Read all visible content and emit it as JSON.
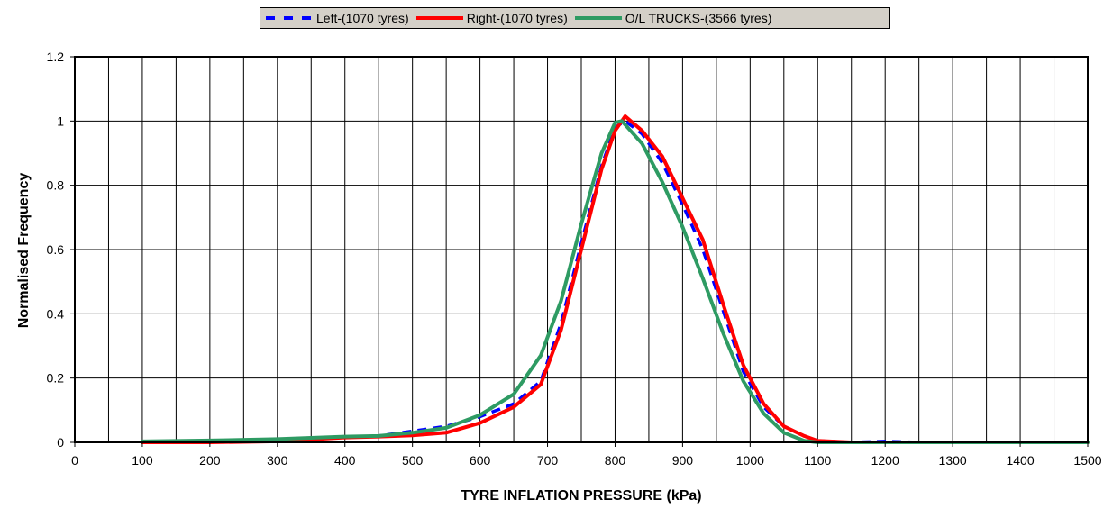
{
  "chart_data": {
    "type": "line",
    "title": "",
    "xlabel": "TYRE INFLATION PRESSURE (kPa)",
    "ylabel": "Normalised Frequency",
    "xlim": [
      0,
      1500
    ],
    "ylim": [
      0,
      1.2
    ],
    "x_ticks": [
      "0",
      "100",
      "200",
      "300",
      "400",
      "500",
      "600",
      "700",
      "800",
      "900",
      "1000",
      "1100",
      "1200",
      "1300",
      "1400",
      "1500"
    ],
    "y_ticks": [
      "0",
      "0.2",
      "0.4",
      "0.6",
      "0.8",
      "1",
      "1.2"
    ],
    "grid": true,
    "legend_position": "top-center",
    "series": [
      {
        "name": "Left-(1070 tyres)",
        "color": "#0000ff",
        "style": "dashed",
        "points": [
          [
            100,
            0
          ],
          [
            200,
            0.002
          ],
          [
            300,
            0.005
          ],
          [
            400,
            0.015
          ],
          [
            450,
            0.02
          ],
          [
            500,
            0.035
          ],
          [
            550,
            0.05
          ],
          [
            600,
            0.08
          ],
          [
            650,
            0.12
          ],
          [
            690,
            0.19
          ],
          [
            720,
            0.37
          ],
          [
            750,
            0.62
          ],
          [
            780,
            0.86
          ],
          [
            800,
            0.98
          ],
          [
            815,
            1.0
          ],
          [
            840,
            0.96
          ],
          [
            870,
            0.87
          ],
          [
            900,
            0.74
          ],
          [
            930,
            0.6
          ],
          [
            960,
            0.41
          ],
          [
            990,
            0.22
          ],
          [
            1020,
            0.11
          ],
          [
            1050,
            0.05
          ],
          [
            1080,
            0.02
          ],
          [
            1100,
            0.005
          ],
          [
            1150,
            0
          ],
          [
            1200,
            0.003
          ],
          [
            1250,
            0
          ],
          [
            1500,
            0
          ]
        ]
      },
      {
        "name": "Right-(1070 tyres)",
        "color": "#ff0000",
        "style": "solid",
        "points": [
          [
            100,
            0
          ],
          [
            200,
            0
          ],
          [
            300,
            0.003
          ],
          [
            400,
            0.015
          ],
          [
            450,
            0.018
          ],
          [
            500,
            0.022
          ],
          [
            550,
            0.03
          ],
          [
            600,
            0.06
          ],
          [
            650,
            0.11
          ],
          [
            690,
            0.18
          ],
          [
            720,
            0.35
          ],
          [
            750,
            0.6
          ],
          [
            780,
            0.85
          ],
          [
            800,
            0.97
          ],
          [
            815,
            1.015
          ],
          [
            840,
            0.97
          ],
          [
            870,
            0.89
          ],
          [
            900,
            0.76
          ],
          [
            930,
            0.63
          ],
          [
            960,
            0.43
          ],
          [
            990,
            0.24
          ],
          [
            1020,
            0.12
          ],
          [
            1050,
            0.05
          ],
          [
            1080,
            0.02
          ],
          [
            1100,
            0.005
          ],
          [
            1150,
            0
          ],
          [
            1500,
            0
          ]
        ]
      },
      {
        "name": "O/L TRUCKS-(3566 tyres)",
        "color": "#2e9b63",
        "style": "solid",
        "points": [
          [
            100,
            0.003
          ],
          [
            200,
            0.006
          ],
          [
            300,
            0.01
          ],
          [
            400,
            0.018
          ],
          [
            450,
            0.02
          ],
          [
            500,
            0.03
          ],
          [
            550,
            0.045
          ],
          [
            600,
            0.085
          ],
          [
            650,
            0.15
          ],
          [
            690,
            0.27
          ],
          [
            720,
            0.44
          ],
          [
            750,
            0.68
          ],
          [
            780,
            0.9
          ],
          [
            800,
            0.995
          ],
          [
            810,
            1.0
          ],
          [
            840,
            0.93
          ],
          [
            870,
            0.81
          ],
          [
            900,
            0.67
          ],
          [
            930,
            0.51
          ],
          [
            960,
            0.34
          ],
          [
            990,
            0.19
          ],
          [
            1020,
            0.09
          ],
          [
            1050,
            0.03
          ],
          [
            1080,
            0.005
          ],
          [
            1100,
            0
          ],
          [
            1500,
            0
          ]
        ]
      }
    ]
  }
}
